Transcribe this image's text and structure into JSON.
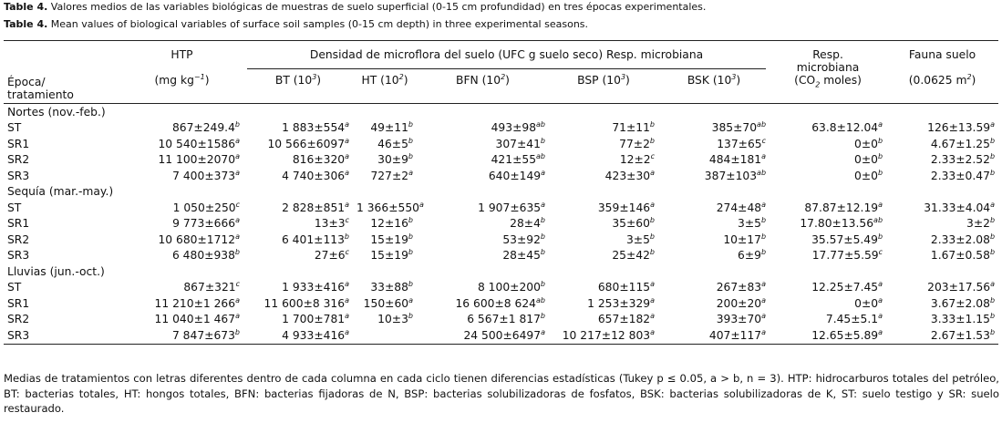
{
  "captions": [
    {
      "label": "Table 4.",
      "text": "Valores medios de las variables biológicas de muestras de suelo superficial (0-15 cm profundidad) en tres épocas experimentales."
    },
    {
      "label": "Table 4.",
      "text": "Mean values of biological variables of surface soil samples (0-15 cm depth) in three experimental seasons."
    }
  ],
  "header": {
    "htp": "HTP",
    "density": "Densidad de microflora del suelo (UFC g suelo seco) Resp. microbiana",
    "resp": [
      "Resp.",
      "microbiana"
    ],
    "fauna": "Fauna suelo",
    "epoca": [
      "Época/",
      "tratamiento"
    ],
    "units": [
      [
        "(mg kg",
        {
          "sup": "−1"
        },
        ")"
      ],
      [
        "BT (10",
        {
          "sup": "3"
        },
        ")"
      ],
      [
        "HT (10",
        {
          "sup": "2"
        },
        ")"
      ],
      [
        "BFN (10",
        {
          "sup": "2"
        },
        ")"
      ],
      [
        "BSP (10",
        {
          "sup": "3"
        },
        ")"
      ],
      [
        "BSK (10",
        {
          "sup": "3"
        },
        ")"
      ],
      [
        "(CO",
        {
          "sub": "2"
        },
        " moles)"
      ],
      [
        "(0.0625 m",
        {
          "sup": "2"
        },
        ")"
      ]
    ]
  },
  "table": {
    "groups": [
      {
        "label": "Nortes (nov.-feb.)",
        "rows": [
          [
            "ST",
            [
              "867±249.4",
              {
                "sup": "b"
              }
            ],
            [
              "1 883±554",
              {
                "sup": "a"
              }
            ],
            [
              "49±11",
              {
                "sup": "b"
              }
            ],
            [
              "493±98",
              {
                "sup": "ab"
              }
            ],
            [
              "71±11",
              {
                "sup": "b"
              }
            ],
            [
              "385±70",
              {
                "sup": "ab"
              }
            ],
            [
              "63.8±12.04",
              {
                "sup": "a"
              }
            ],
            [
              "126±13.59",
              {
                "sup": "a"
              }
            ]
          ],
          [
            "SR1",
            [
              "10 540±1586",
              {
                "sup": "a"
              }
            ],
            [
              "10 566±6097",
              {
                "sup": "a"
              }
            ],
            [
              "46±5",
              {
                "sup": "b"
              }
            ],
            [
              "307±41",
              {
                "sup": "b"
              }
            ],
            [
              "77±2",
              {
                "sup": "b"
              }
            ],
            [
              "137±65",
              {
                "sup": "c"
              }
            ],
            [
              "0±0",
              {
                "sup": "b"
              }
            ],
            [
              "4.67±1.25",
              {
                "sup": "b"
              }
            ]
          ],
          [
            "SR2",
            [
              "11 100±2070",
              {
                "sup": "a"
              }
            ],
            [
              "816±320",
              {
                "sup": "a"
              }
            ],
            [
              "30±9",
              {
                "sup": "b"
              }
            ],
            [
              "421±55",
              {
                "sup": "ab"
              }
            ],
            [
              "12±2",
              {
                "sup": "c"
              }
            ],
            [
              "484±181",
              {
                "sup": "a"
              }
            ],
            [
              "0±0",
              {
                "sup": "b"
              }
            ],
            [
              "2.33±2.52",
              {
                "sup": "b"
              }
            ]
          ],
          [
            "SR3",
            [
              "7 400±373",
              {
                "sup": "a"
              }
            ],
            [
              "4 740±306",
              {
                "sup": "a"
              }
            ],
            [
              "727±2",
              {
                "sup": "a"
              }
            ],
            [
              "640±149",
              {
                "sup": "a"
              }
            ],
            [
              "423±30",
              {
                "sup": "a"
              }
            ],
            [
              "387±103",
              {
                "sup": "ab"
              }
            ],
            [
              "0±0",
              {
                "sup": "b"
              }
            ],
            [
              "2.33±0.47",
              {
                "sup": "b"
              }
            ]
          ]
        ]
      },
      {
        "label": "Sequía (mar.-may.)",
        "rows": [
          [
            "ST",
            [
              "1 050±250",
              {
                "sup": "c"
              }
            ],
            [
              "2 828±851",
              {
                "sup": "a"
              }
            ],
            [
              "1 366±550",
              {
                "sup": "a"
              }
            ],
            [
              "1 907±635",
              {
                "sup": "a"
              }
            ],
            [
              "359±146",
              {
                "sup": "a"
              }
            ],
            [
              "274±48",
              {
                "sup": "a"
              }
            ],
            [
              "87.87±12.19",
              {
                "sup": "a"
              }
            ],
            [
              "31.33±4.04",
              {
                "sup": "a"
              }
            ]
          ],
          [
            "SR1",
            [
              "9 773±666",
              {
                "sup": "a"
              }
            ],
            [
              "13±3",
              {
                "sup": "c"
              }
            ],
            [
              "12±16",
              {
                "sup": "b"
              }
            ],
            [
              "28±4",
              {
                "sup": "b"
              }
            ],
            [
              "35±60",
              {
                "sup": "b"
              }
            ],
            [
              "3±5",
              {
                "sup": "b"
              }
            ],
            [
              "17.80±13.56",
              {
                "sup": "ab"
              }
            ],
            [
              "3±2",
              {
                "sup": "b"
              }
            ]
          ],
          [
            "SR2",
            [
              "10 680±1712",
              {
                "sup": "a"
              }
            ],
            [
              "6 401±113",
              {
                "sup": "b"
              }
            ],
            [
              "15±19",
              {
                "sup": "b"
              }
            ],
            [
              "53±92",
              {
                "sup": "b"
              }
            ],
            [
              "3±5",
              {
                "sup": "b"
              }
            ],
            [
              "10±17",
              {
                "sup": "b"
              }
            ],
            [
              "35.57±5.49",
              {
                "sup": "b"
              }
            ],
            [
              "2.33±2.08",
              {
                "sup": "b"
              }
            ]
          ],
          [
            "SR3",
            [
              "6 480±938",
              {
                "sup": "b"
              }
            ],
            [
              "27±6",
              {
                "sup": "c"
              }
            ],
            [
              "15±19",
              {
                "sup": "b"
              }
            ],
            [
              "28±45",
              {
                "sup": "b"
              }
            ],
            [
              "25±42",
              {
                "sup": "b"
              }
            ],
            [
              "6±9",
              {
                "sup": "b"
              }
            ],
            [
              "17.77±5.59",
              {
                "sup": "c"
              }
            ],
            [
              "1.67±0.58",
              {
                "sup": "b"
              }
            ]
          ]
        ]
      },
      {
        "label": "Lluvias (jun.-oct.)",
        "rows": [
          [
            "ST",
            [
              "867±321",
              {
                "sup": "c"
              }
            ],
            [
              "1 933±416",
              {
                "sup": "a"
              }
            ],
            [
              "33±88",
              {
                "sup": "b"
              }
            ],
            [
              "8 100±200",
              {
                "sup": "b"
              }
            ],
            [
              "680±115",
              {
                "sup": "a"
              }
            ],
            [
              "267±83",
              {
                "sup": "a"
              }
            ],
            [
              "12.25±7.45",
              {
                "sup": "a"
              }
            ],
            [
              "203±17.56",
              {
                "sup": "a"
              }
            ]
          ],
          [
            "SR1",
            [
              "11 210±1 266",
              {
                "sup": "a"
              }
            ],
            [
              "11 600±8 316",
              {
                "sup": "a"
              }
            ],
            [
              "150±60",
              {
                "sup": "a"
              }
            ],
            [
              "16 600±8 624",
              {
                "sup": "ab"
              }
            ],
            [
              "1 253±329",
              {
                "sup": "a"
              }
            ],
            [
              "200±20",
              {
                "sup": "a"
              }
            ],
            [
              "0±0",
              {
                "sup": "a"
              }
            ],
            [
              "3.67±2.08",
              {
                "sup": "b"
              }
            ]
          ],
          [
            "SR2",
            [
              "11 040±1 467",
              {
                "sup": "a"
              }
            ],
            [
              "1 700±781",
              {
                "sup": "a"
              }
            ],
            [
              "10±3",
              {
                "sup": "b"
              }
            ],
            [
              "6 567±1 817",
              {
                "sup": "b"
              }
            ],
            [
              "657±182",
              {
                "sup": "a"
              }
            ],
            [
              "393±70",
              {
                "sup": "a"
              }
            ],
            [
              "7.45±5.1",
              {
                "sup": "a"
              }
            ],
            [
              "3.33±1.15",
              {
                "sup": "b"
              }
            ]
          ],
          [
            "SR3",
            [
              "7 847±673",
              {
                "sup": "b"
              }
            ],
            [
              "4 933±416",
              {
                "sup": "a"
              }
            ],
            null,
            [
              "24 500±6497",
              {
                "sup": "a"
              }
            ],
            [
              "10 217±12 803",
              {
                "sup": "a"
              }
            ],
            [
              "407±117",
              {
                "sup": "a"
              }
            ],
            [
              "12.65±5.89",
              {
                "sup": "a"
              }
            ],
            [
              "2.67±1.53",
              {
                "sup": "b"
              }
            ]
          ]
        ]
      }
    ]
  },
  "footnote": "Medias de tratamientos con letras diferentes dentro de cada columna en cada ciclo tienen diferencias estadísticas (Tukey p ≤ 0.05, a > b, n = 3). HTP: hidrocarburos totales del petróleo, BT: bacterias totales, HT: hongos totales, BFN: bacterias fijadoras de N, BSP: bacterias solubilizadoras de fosfatos, BSK: bacterias solubilizadoras de K, ST: suelo testigo y SR: suelo restaurado."
}
